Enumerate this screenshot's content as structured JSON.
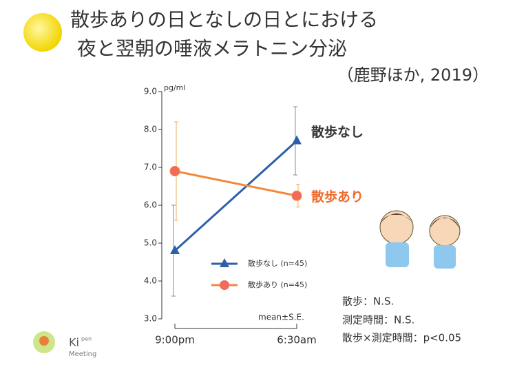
{
  "chart_data": {
    "type": "line",
    "title_lines": [
      "散歩ありの日となしの日とにおける",
      "夜と翌朝の唾液メラトニン分泌"
    ],
    "source": "（鹿野ほか, 2019）",
    "y_unit": "pg/ml",
    "categories": [
      "9:00pm",
      "6:30am"
    ],
    "series": [
      {
        "name": "散歩なし (n=45)",
        "label": "散歩なし",
        "color": "#2f5fa6",
        "label_color": "#333333",
        "marker": "triangle",
        "values": [
          4.8,
          7.7
        ],
        "errors": [
          1.2,
          0.9
        ]
      },
      {
        "name": "散歩あり (n=45)",
        "label": "散歩あり",
        "color": "#f5873a",
        "label_color": "#f06a2a",
        "marker": "circle",
        "values": [
          6.9,
          6.25
        ],
        "errors": [
          1.3,
          0.3
        ]
      }
    ],
    "ylim": [
      3,
      9
    ],
    "yticks": [
      {
        "value": 3,
        "label": "3.0"
      },
      {
        "value": 4,
        "label": "4.0"
      },
      {
        "value": 5,
        "label": "5.0"
      },
      {
        "value": 6,
        "label": "6.0"
      },
      {
        "value": 7,
        "label": "7.0"
      },
      {
        "value": 8,
        "label": "8.0"
      },
      {
        "value": 9,
        "label": "9.0"
      }
    ],
    "note": "mean±S.E.",
    "statistics": [
      "散歩：N.S.",
      "測定時間：N.S.",
      "散歩×測定時間：p<0.05"
    ]
  },
  "logo": {
    "main": "Ki",
    "sup": "pen",
    "sub": "Meeting"
  }
}
